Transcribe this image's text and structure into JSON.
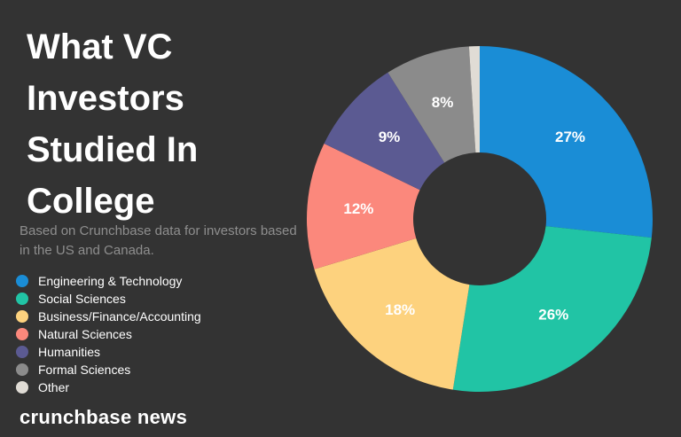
{
  "chart_data": {
    "type": "donut",
    "title": "What VC Investors Studied In College",
    "subtitle": "Based on Crunchbase data for investors based in the US and Canada.",
    "categories": [
      "Engineering & Technology",
      "Social Sciences",
      "Business/Finance/Accounting",
      "Natural Sciences",
      "Humanities",
      "Formal Sciences",
      "Other"
    ],
    "values": [
      27,
      26,
      18,
      12,
      9,
      8,
      1
    ],
    "value_labels": [
      "27%",
      "26%",
      "18%",
      "12%",
      "9%",
      "8%",
      null
    ],
    "colors": [
      "#1a8dd6",
      "#21c4a5",
      "#fdd27e",
      "#fb887c",
      "#5b5a92",
      "#8b8b8b",
      "#e0dcd5"
    ]
  },
  "brand": "crunchbase news"
}
